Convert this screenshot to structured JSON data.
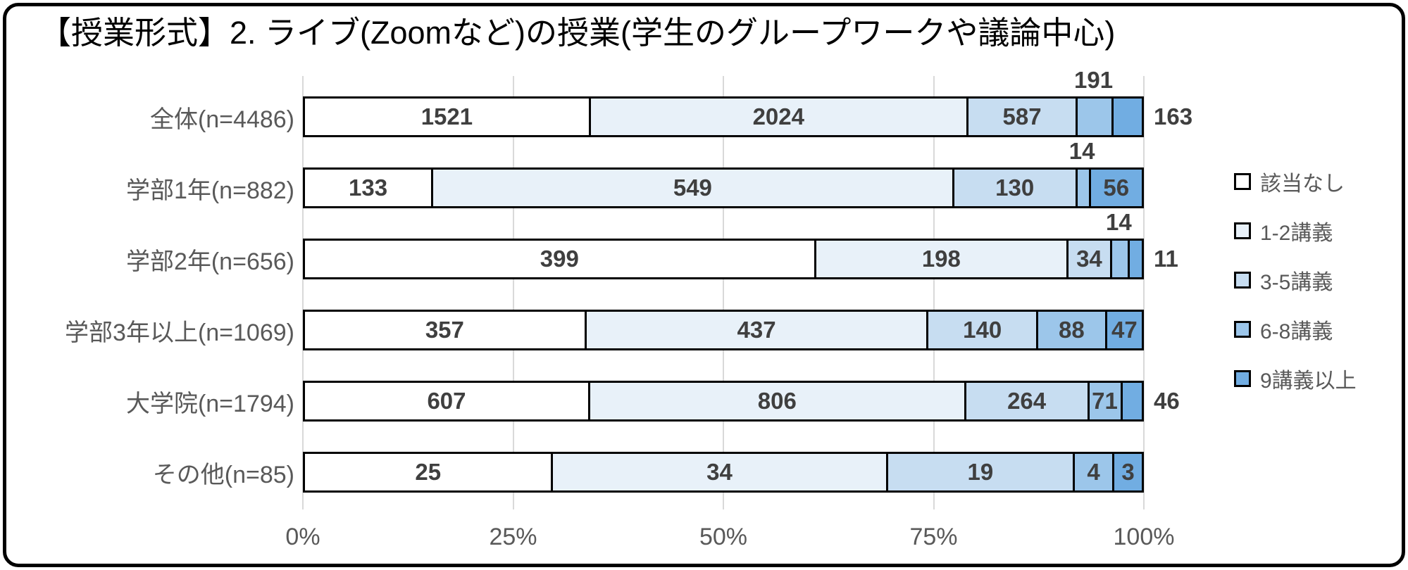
{
  "title": "【授業形式】2. ライブ(Zoomなど)の授業(学生のグループワークや議論中心)",
  "chart_data": {
    "type": "bar",
    "variant": "100pct-stacked-horizontal",
    "title": "【授業形式】2. ライブ(Zoomなど)の授業(学生のグループワークや議論中心)",
    "x_axis": {
      "tick_labels": [
        "0%",
        "25%",
        "50%",
        "75%",
        "100%"
      ],
      "range_percent": [
        0,
        100
      ],
      "gridlines": true
    },
    "legend": {
      "position": "right",
      "entries": [
        {
          "label": "該当なし",
          "color": "#ffffff"
        },
        {
          "label": "1-2講義",
          "color": "#e8f1f9"
        },
        {
          "label": "3-5講義",
          "color": "#c7ddf1"
        },
        {
          "label": "6-8講義",
          "color": "#9cc6ea"
        },
        {
          "label": "9講義以上",
          "color": "#71ade2"
        }
      ]
    },
    "categories": [
      "全体(n=4486)",
      "学部1年(n=882)",
      "学部2年(n=656)",
      "学部3年以上(n=1069)",
      "大学院(n=1794)",
      "その他(n=85)"
    ],
    "rows": [
      {
        "category": "全体(n=4486)",
        "total": 4486,
        "values": [
          1521,
          2024,
          587,
          191,
          163
        ],
        "label_positions": [
          "inside",
          "inside",
          "inside",
          "above",
          "right"
        ]
      },
      {
        "category": "学部1年(n=882)",
        "total": 882,
        "values": [
          133,
          549,
          130,
          14,
          56
        ],
        "label_positions": [
          "inside",
          "inside",
          "inside",
          "above",
          "inside"
        ]
      },
      {
        "category": "学部2年(n=656)",
        "total": 656,
        "values": [
          399,
          198,
          34,
          14,
          11
        ],
        "label_positions": [
          "inside",
          "inside",
          "inside",
          "above",
          "right"
        ]
      },
      {
        "category": "学部3年以上(n=1069)",
        "total": 1069,
        "values": [
          357,
          437,
          140,
          88,
          47
        ],
        "label_positions": [
          "inside",
          "inside",
          "inside",
          "inside",
          "inside"
        ]
      },
      {
        "category": "大学院(n=1794)",
        "total": 1794,
        "values": [
          607,
          806,
          264,
          71,
          46
        ],
        "label_positions": [
          "inside",
          "inside",
          "inside",
          "inside",
          "right"
        ]
      },
      {
        "category": "その他(n=85)",
        "total": 85,
        "values": [
          25,
          34,
          19,
          4,
          3
        ],
        "label_positions": [
          "inside",
          "inside",
          "inside",
          "inside",
          "inside"
        ]
      }
    ],
    "colors": {
      "frame_border": "#000000",
      "segment_border": "#000000",
      "gridline": "#d9d9d9",
      "value_label": "#3f3f3f",
      "axis_label": "#595959",
      "category_label": "#595959",
      "background": "#ffffff"
    }
  }
}
